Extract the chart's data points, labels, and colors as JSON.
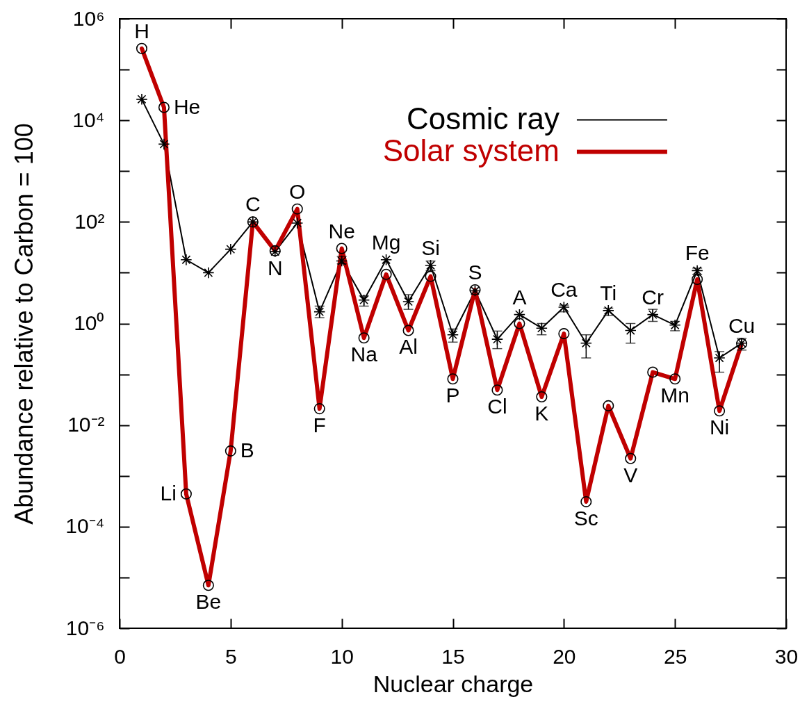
{
  "chart_data": {
    "type": "line",
    "xlabel": "Nuclear charge",
    "ylabel": "Abundance relative to Carbon = 100",
    "x": [
      1,
      2,
      3,
      4,
      5,
      6,
      7,
      8,
      9,
      10,
      11,
      12,
      13,
      14,
      15,
      16,
      17,
      18,
      19,
      20,
      21,
      22,
      23,
      24,
      25,
      26,
      27,
      28
    ],
    "xlim": [
      0,
      30
    ],
    "xticks": [
      0,
      5,
      10,
      15,
      20,
      25,
      30
    ],
    "ylim": [
      1e-06,
      1000000
    ],
    "yticks": [
      {
        "value": 1e-06,
        "label": "10⁻⁶"
      },
      {
        "value": 1e-05,
        "label": null
      },
      {
        "value": 0.0001,
        "label": "10⁻⁴"
      },
      {
        "value": 0.001,
        "label": null
      },
      {
        "value": 0.01,
        "label": "10⁻²"
      },
      {
        "value": 0.1,
        "label": null
      },
      {
        "value": 1,
        "label": "10⁰"
      },
      {
        "value": 10,
        "label": null
      },
      {
        "value": 100,
        "label": "10²"
      },
      {
        "value": 1000,
        "label": null
      },
      {
        "value": 10000,
        "label": "10⁴"
      },
      {
        "value": 100000,
        "label": null
      },
      {
        "value": 1000000,
        "label": "10⁶"
      }
    ],
    "log": "y",
    "legend": "top right",
    "line_style": "solid",
    "series": [
      {
        "name": "Cosmic ray",
        "color": "#000000",
        "marker": "cross",
        "values": [
          26000,
          3400,
          18,
          10,
          29,
          100,
          26,
          95,
          1.7,
          17,
          2.9,
          18,
          2.7,
          14,
          0.6,
          4.4,
          0.49,
          1.5,
          0.81,
          2.1,
          0.41,
          1.8,
          0.73,
          1.5,
          0.93,
          11,
          0.21,
          0.41
        ],
        "errors": [
          null,
          null,
          null,
          null,
          null,
          null,
          null,
          null,
          [
            1.3,
            2.2
          ],
          [
            15,
            21
          ],
          [
            2.2,
            3.5
          ],
          null,
          [
            1.9,
            3.7
          ],
          [
            11,
            17
          ],
          [
            0.43,
            0.78
          ],
          null,
          [
            0.32,
            0.71
          ],
          null,
          [
            0.6,
            1.0
          ],
          [
            1.7,
            2.3
          ],
          [
            0.21,
            0.6
          ],
          [
            1.45,
            2.0
          ],
          [
            0.41,
            1.0
          ],
          [
            1.1,
            1.9
          ],
          [
            0.72,
            1.1
          ],
          [
            9.3,
            12.3
          ],
          [
            0.11,
            0.28
          ],
          [
            0.3,
            0.51
          ]
        ]
      },
      {
        "name": "Solar system",
        "color": "#c00000",
        "marker": "circle",
        "values": [
          260000,
          18000,
          0.00044,
          7e-06,
          0.0031,
          100,
          27,
          180,
          0.021,
          30,
          0.52,
          9.3,
          0.73,
          8.5,
          0.081,
          4.6,
          0.049,
          1.0,
          0.036,
          0.63,
          0.00031,
          0.024,
          0.0022,
          0.11,
          0.081,
          7.4,
          0.019,
          0.4
        ]
      }
    ],
    "annotations": [
      {
        "text": "H",
        "x": 1,
        "y": 260000
      },
      {
        "text": "He",
        "x": 2,
        "y": 18000
      },
      {
        "text": "Li",
        "x": 3,
        "y": 0.00044
      },
      {
        "text": "Be",
        "x": 4,
        "y": 7e-06
      },
      {
        "text": "B",
        "x": 5,
        "y": 0.0031
      },
      {
        "text": "C",
        "x": 6,
        "y": 100
      },
      {
        "text": "N",
        "x": 7,
        "y": 26
      },
      {
        "text": "O",
        "x": 8,
        "y": 180
      },
      {
        "text": "F",
        "x": 9,
        "y": 0.021
      },
      {
        "text": "Ne",
        "x": 10,
        "y": 30
      },
      {
        "text": "Na",
        "x": 11,
        "y": 0.52
      },
      {
        "text": "Mg",
        "x": 12,
        "y": 18
      },
      {
        "text": "Al",
        "x": 13,
        "y": 0.73
      },
      {
        "text": "Si",
        "x": 14,
        "y": 14
      },
      {
        "text": "P",
        "x": 15,
        "y": 0.081
      },
      {
        "text": "S",
        "x": 16,
        "y": 4.6
      },
      {
        "text": "Cl",
        "x": 17,
        "y": 0.049
      },
      {
        "text": "A",
        "x": 18,
        "y": 1.5
      },
      {
        "text": "K",
        "x": 19,
        "y": 0.036
      },
      {
        "text": "Ca",
        "x": 20,
        "y": 2.1
      },
      {
        "text": "Sc",
        "x": 21,
        "y": 0.00031
      },
      {
        "text": "Ti",
        "x": 22,
        "y": 1.8
      },
      {
        "text": "V",
        "x": 23,
        "y": 0.0022
      },
      {
        "text": "Cr",
        "x": 24,
        "y": 1.5
      },
      {
        "text": "Mn",
        "x": 25,
        "y": 0.081
      },
      {
        "text": "Fe",
        "x": 26,
        "y": 11
      },
      {
        "text": "Ni",
        "x": 27,
        "y": 0.019
      },
      {
        "text": "Cu",
        "x": 28,
        "y": 0.41
      }
    ]
  }
}
